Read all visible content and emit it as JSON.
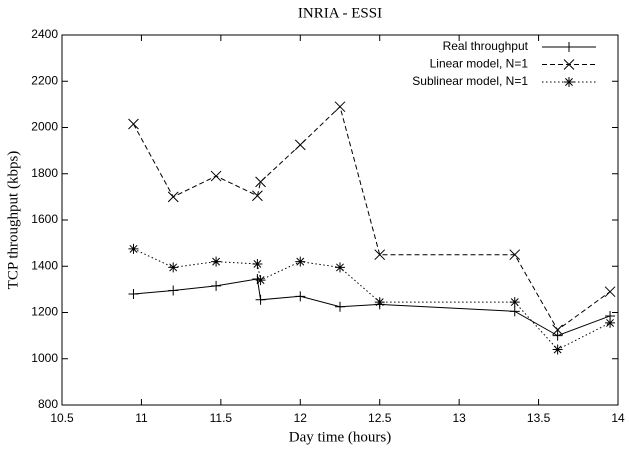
{
  "chart_data": {
    "type": "line",
    "title": "INRIA - ESSI",
    "x_label": "Day time (hours)",
    "y_label": "TCP throughput (kbps)",
    "xlim": [
      10.5,
      14
    ],
    "xticks": [
      10.5,
      11,
      11.5,
      12,
      12.5,
      13,
      13.5,
      14
    ],
    "ylim": [
      800,
      2400
    ],
    "yticks": [
      800,
      1000,
      1200,
      1400,
      1600,
      1800,
      2000,
      2200,
      2400
    ],
    "legend": "top-right",
    "series": [
      {
        "name": "Real throughput",
        "color": "#000000",
        "marker": "plus",
        "dash": "solid",
        "x": [
          10.95,
          11.2,
          11.47,
          11.73,
          11.75,
          12.0,
          12.25,
          12.5,
          13.35,
          13.62,
          13.95
        ],
        "values": [
          1280,
          1295,
          1315,
          1345,
          1255,
          1270,
          1225,
          1235,
          1205,
          1100,
          1185
        ]
      },
      {
        "name": "Linear model, N=1",
        "color": "#000000",
        "marker": "cross",
        "dash": "dashed",
        "x": [
          10.95,
          11.2,
          11.47,
          11.73,
          11.75,
          12.0,
          12.25,
          12.5,
          13.35,
          13.62,
          13.95
        ],
        "values": [
          2015,
          1700,
          1790,
          1705,
          1765,
          1925,
          2090,
          1450,
          1450,
          1125,
          1290
        ]
      },
      {
        "name": "Sublinear model, N=1",
        "color": "#000000",
        "marker": "star",
        "dash": "dotted",
        "x": [
          10.95,
          11.2,
          11.47,
          11.73,
          11.75,
          12.0,
          12.25,
          12.5,
          13.35,
          13.62,
          13.95
        ],
        "values": [
          1475,
          1395,
          1420,
          1410,
          1340,
          1420,
          1395,
          1245,
          1245,
          1040,
          1155
        ]
      }
    ]
  }
}
